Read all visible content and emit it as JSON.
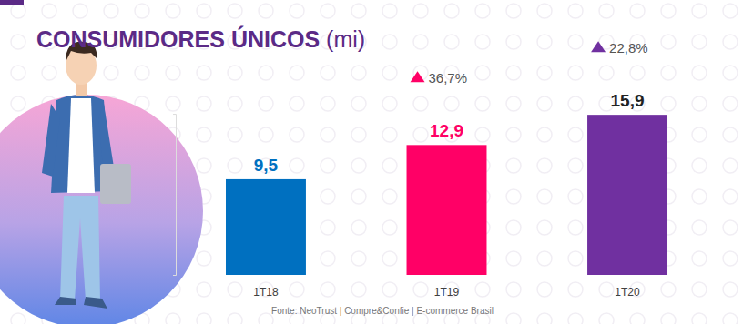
{
  "chart_data": {
    "type": "bar",
    "title": "CONSUMIDORES ÚNICOS (mi)",
    "categories": [
      "1T18",
      "1T19",
      "1T20"
    ],
    "values": [
      9.5,
      12.9,
      15.9
    ],
    "value_labels": [
      "9,5",
      "12,9",
      "15,9"
    ],
    "colors": [
      "#0070c0",
      "#ff0066",
      "#7030a0"
    ],
    "data_labels": true,
    "tick_labels": "x",
    "ylim": [
      0,
      16
    ],
    "yticks": [
      0,
      16
    ],
    "annotations": [
      {
        "text": "36,7%",
        "category": "1T19"
      },
      {
        "text": "22,8%",
        "category": "1T20"
      }
    ],
    "source": "Fonte: NeoTrust | Compre&Confie | E-commerce Brasil"
  }
}
